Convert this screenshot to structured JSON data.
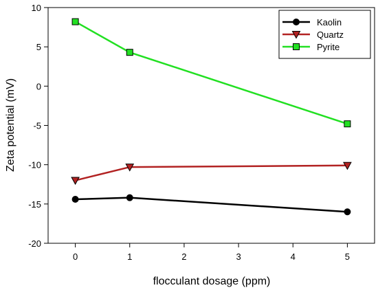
{
  "chart_data": {
    "type": "line",
    "xlabel": "flocculant dosage (ppm)",
    "ylabel": "Zeta potential (mV)",
    "xlim": [
      -0.5,
      5.5
    ],
    "ylim": [
      -20,
      10
    ],
    "xticks": [
      0,
      1,
      2,
      3,
      4,
      5
    ],
    "yticks": [
      -20,
      -15,
      -10,
      -5,
      0,
      5,
      10
    ],
    "grid": false,
    "legend_position": "top-right",
    "series": [
      {
        "name": "Kaolin",
        "x": [
          0,
          1,
          5
        ],
        "y": [
          -14.4,
          -14.2,
          -16.0
        ],
        "color": "#000000",
        "marker": "circle",
        "marker_fill": "#000000"
      },
      {
        "name": "Quartz",
        "x": [
          0,
          1,
          5
        ],
        "y": [
          -12.0,
          -10.3,
          -10.1
        ],
        "color": "#b22222",
        "marker": "triangle-down",
        "marker_fill": "#b22222"
      },
      {
        "name": "Pyrite",
        "x": [
          0,
          1,
          5
        ],
        "y": [
          8.2,
          4.3,
          -4.8
        ],
        "color": "#22e022",
        "marker": "square",
        "marker_fill": "#22e022"
      }
    ]
  }
}
